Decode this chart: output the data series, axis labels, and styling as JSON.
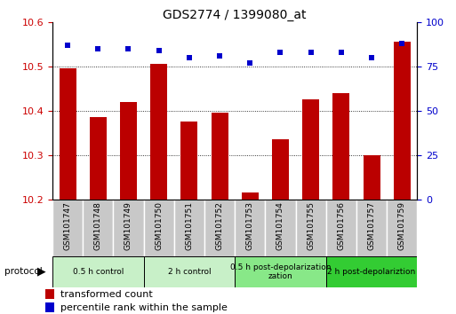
{
  "title": "GDS2774 / 1399080_at",
  "categories": [
    "GSM101747",
    "GSM101748",
    "GSM101749",
    "GSM101750",
    "GSM101751",
    "GSM101752",
    "GSM101753",
    "GSM101754",
    "GSM101755",
    "GSM101756",
    "GSM101757",
    "GSM101759"
  ],
  "bar_values": [
    10.495,
    10.385,
    10.42,
    10.505,
    10.375,
    10.395,
    10.215,
    10.335,
    10.425,
    10.44,
    10.3,
    10.555
  ],
  "dot_values": [
    87,
    85,
    85,
    84,
    80,
    81,
    77,
    83,
    83,
    83,
    80,
    88
  ],
  "ylim_left": [
    10.2,
    10.6
  ],
  "ylim_right": [
    0,
    100
  ],
  "yticks_left": [
    10.2,
    10.3,
    10.4,
    10.5,
    10.6
  ],
  "yticks_right": [
    0,
    25,
    50,
    75,
    100
  ],
  "bar_color": "#bb0000",
  "dot_color": "#0000cc",
  "grid_lines": [
    10.3,
    10.4,
    10.5
  ],
  "protocol_groups": [
    {
      "label": "0.5 h control",
      "starts": 0,
      "ends": 2,
      "color": "#c8f0c8"
    },
    {
      "label": "2 h control",
      "starts": 3,
      "ends": 5,
      "color": "#c8f0c8"
    },
    {
      "label": "0.5 h post-depolarization\nzation",
      "starts": 6,
      "ends": 8,
      "color": "#88e888"
    },
    {
      "label": "2 h post-depolariztion",
      "starts": 9,
      "ends": 11,
      "color": "#33cc33"
    }
  ],
  "legend_items": [
    {
      "label": "transformed count",
      "color": "#bb0000"
    },
    {
      "label": "percentile rank within the sample",
      "color": "#0000cc"
    }
  ],
  "ylabel_left_color": "#cc0000",
  "ylabel_right_color": "#0000cc",
  "xtick_bg_color": "#c8c8c8",
  "xtick_border_color": "#ffffff",
  "plot_bg_color": "#ffffff",
  "border_color": "#000000"
}
